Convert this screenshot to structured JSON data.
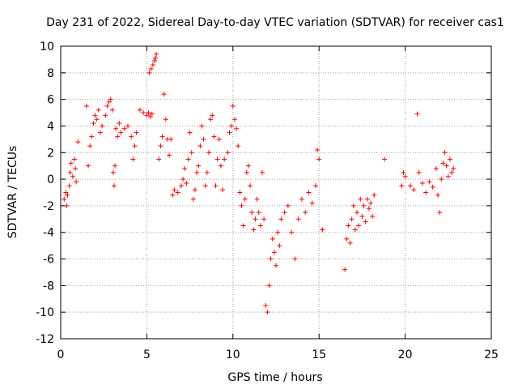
{
  "chart_data": {
    "type": "scatter",
    "title": "Day 231 of 2022, Sidereal Day-to-day VTEC variation (SDTVAR) for receiver cas1",
    "xlabel": "GPS time / hours",
    "ylabel": "SDTVAR / TECUs",
    "xlim": [
      0,
      25
    ],
    "ylim": [
      -12,
      10
    ],
    "xticks": [
      0,
      5,
      10,
      15,
      20,
      25
    ],
    "yticks": [
      -12,
      -10,
      -8,
      -6,
      -4,
      -2,
      0,
      2,
      4,
      6,
      8,
      10
    ],
    "grid": true,
    "marker": "+",
    "color": "#ff0000",
    "series": [
      {
        "name": "cas1",
        "points": [
          [
            0.2,
            -1.5
          ],
          [
            0.3,
            -1.0
          ],
          [
            0.35,
            -2.0
          ],
          [
            0.4,
            -1.2
          ],
          [
            0.5,
            -0.5
          ],
          [
            0.55,
            0.5
          ],
          [
            0.6,
            1.2
          ],
          [
            0.7,
            0.2
          ],
          [
            0.8,
            1.5
          ],
          [
            0.85,
            0.8
          ],
          [
            0.9,
            -0.2
          ],
          [
            1.0,
            2.8
          ],
          [
            1.5,
            5.5
          ],
          [
            1.6,
            1.0
          ],
          [
            1.7,
            2.5
          ],
          [
            1.8,
            3.2
          ],
          [
            1.9,
            4.2
          ],
          [
            2.0,
            4.8
          ],
          [
            2.1,
            4.5
          ],
          [
            2.2,
            5.2
          ],
          [
            2.3,
            3.5
          ],
          [
            2.4,
            4.0
          ],
          [
            2.6,
            4.8
          ],
          [
            2.7,
            5.5
          ],
          [
            2.8,
            5.8
          ],
          [
            2.9,
            6.0
          ],
          [
            3.0,
            5.2
          ],
          [
            3.05,
            0.5
          ],
          [
            3.1,
            -0.5
          ],
          [
            3.15,
            1.0
          ],
          [
            3.2,
            3.8
          ],
          [
            3.3,
            3.2
          ],
          [
            3.4,
            4.2
          ],
          [
            3.5,
            3.5
          ],
          [
            3.7,
            3.8
          ],
          [
            3.9,
            4.0
          ],
          [
            4.1,
            3.2
          ],
          [
            4.2,
            1.5
          ],
          [
            4.3,
            2.5
          ],
          [
            4.4,
            3.5
          ],
          [
            4.6,
            5.2
          ],
          [
            4.8,
            5.0
          ],
          [
            5.0,
            4.8
          ],
          [
            5.1,
            5.0
          ],
          [
            5.2,
            4.7
          ],
          [
            5.3,
            4.9
          ],
          [
            5.15,
            8.0
          ],
          [
            5.25,
            8.3
          ],
          [
            5.35,
            8.6
          ],
          [
            5.45,
            8.9
          ],
          [
            5.5,
            9.1
          ],
          [
            5.55,
            9.4
          ],
          [
            5.7,
            1.5
          ],
          [
            5.8,
            2.5
          ],
          [
            5.9,
            3.2
          ],
          [
            6.0,
            6.4
          ],
          [
            6.1,
            4.5
          ],
          [
            6.2,
            3.0
          ],
          [
            6.3,
            1.8
          ],
          [
            6.4,
            3.0
          ],
          [
            6.5,
            -1.2
          ],
          [
            6.6,
            -0.8
          ],
          [
            6.8,
            -1.0
          ],
          [
            7.0,
            -0.5
          ],
          [
            7.1,
            0.0
          ],
          [
            7.2,
            0.8
          ],
          [
            7.3,
            -0.3
          ],
          [
            7.4,
            1.5
          ],
          [
            7.5,
            3.5
          ],
          [
            7.6,
            2.0
          ],
          [
            7.7,
            -1.5
          ],
          [
            7.8,
            -0.8
          ],
          [
            7.9,
            0.5
          ],
          [
            8.0,
            1.0
          ],
          [
            8.1,
            2.5
          ],
          [
            8.2,
            4.0
          ],
          [
            8.3,
            3.0
          ],
          [
            8.4,
            -0.5
          ],
          [
            8.5,
            0.5
          ],
          [
            8.6,
            2.0
          ],
          [
            8.7,
            4.5
          ],
          [
            8.8,
            4.8
          ],
          [
            8.9,
            3.2
          ],
          [
            9.0,
            -0.5
          ],
          [
            9.1,
            1.5
          ],
          [
            9.2,
            3.0
          ],
          [
            9.3,
            1.0
          ],
          [
            9.4,
            -0.8
          ],
          [
            9.5,
            1.5
          ],
          [
            9.7,
            2.0
          ],
          [
            9.8,
            3.5
          ],
          [
            9.9,
            4.0
          ],
          [
            10.0,
            5.5
          ],
          [
            10.1,
            4.5
          ],
          [
            10.2,
            3.8
          ],
          [
            10.3,
            2.5
          ],
          [
            10.4,
            -1.0
          ],
          [
            10.5,
            -2.0
          ],
          [
            10.6,
            -3.5
          ],
          [
            10.7,
            -1.5
          ],
          [
            10.8,
            0.5
          ],
          [
            10.9,
            1.0
          ],
          [
            11.0,
            -0.5
          ],
          [
            11.1,
            -2.5
          ],
          [
            11.2,
            -3.8
          ],
          [
            11.3,
            -3.0
          ],
          [
            11.4,
            -1.5
          ],
          [
            11.5,
            -2.5
          ],
          [
            11.6,
            -3.5
          ],
          [
            11.7,
            0.5
          ],
          [
            11.8,
            -3.0
          ],
          [
            11.9,
            -9.5
          ],
          [
            12.0,
            -10.0
          ],
          [
            12.1,
            -8.0
          ],
          [
            12.2,
            -6.0
          ],
          [
            12.3,
            -4.5
          ],
          [
            12.4,
            -5.5
          ],
          [
            12.5,
            -6.5
          ],
          [
            12.6,
            -4.0
          ],
          [
            12.7,
            -5.0
          ],
          [
            12.8,
            -3.0
          ],
          [
            13.0,
            -2.5
          ],
          [
            13.2,
            -2.0
          ],
          [
            13.4,
            -4.0
          ],
          [
            13.6,
            -6.0
          ],
          [
            13.8,
            -3.0
          ],
          [
            14.0,
            -1.5
          ],
          [
            14.2,
            -2.5
          ],
          [
            14.4,
            -1.0
          ],
          [
            14.6,
            -1.8
          ],
          [
            14.8,
            -0.5
          ],
          [
            14.9,
            2.2
          ],
          [
            15.0,
            1.5
          ],
          [
            15.2,
            -3.8
          ],
          [
            16.5,
            -6.8
          ],
          [
            16.6,
            -4.5
          ],
          [
            16.7,
            -3.5
          ],
          [
            16.8,
            -4.8
          ],
          [
            16.9,
            -3.0
          ],
          [
            17.0,
            -2.0
          ],
          [
            17.1,
            -3.8
          ],
          [
            17.2,
            -2.5
          ],
          [
            17.3,
            -3.5
          ],
          [
            17.4,
            -1.5
          ],
          [
            17.5,
            -2.8
          ],
          [
            17.6,
            -2.0
          ],
          [
            17.7,
            -3.2
          ],
          [
            17.8,
            -1.5
          ],
          [
            17.9,
            -2.2
          ],
          [
            18.0,
            -1.8
          ],
          [
            18.1,
            -2.8
          ],
          [
            18.2,
            -1.2
          ],
          [
            18.8,
            1.5
          ],
          [
            19.8,
            -0.5
          ],
          [
            19.9,
            0.5
          ],
          [
            20.0,
            0.2
          ],
          [
            20.3,
            -0.5
          ],
          [
            20.5,
            -0.8
          ],
          [
            20.7,
            4.9
          ],
          [
            20.8,
            0.5
          ],
          [
            21.0,
            -0.3
          ],
          [
            21.2,
            -1.0
          ],
          [
            21.4,
            -0.2
          ],
          [
            21.6,
            -0.6
          ],
          [
            21.8,
            0.8
          ],
          [
            21.9,
            -1.2
          ],
          [
            22.0,
            -2.5
          ],
          [
            22.1,
            0.0
          ],
          [
            22.2,
            1.2
          ],
          [
            22.3,
            2.0
          ],
          [
            22.4,
            1.0
          ],
          [
            22.5,
            0.2
          ],
          [
            22.6,
            1.5
          ],
          [
            22.7,
            0.5
          ],
          [
            22.8,
            0.8
          ]
        ]
      }
    ]
  }
}
